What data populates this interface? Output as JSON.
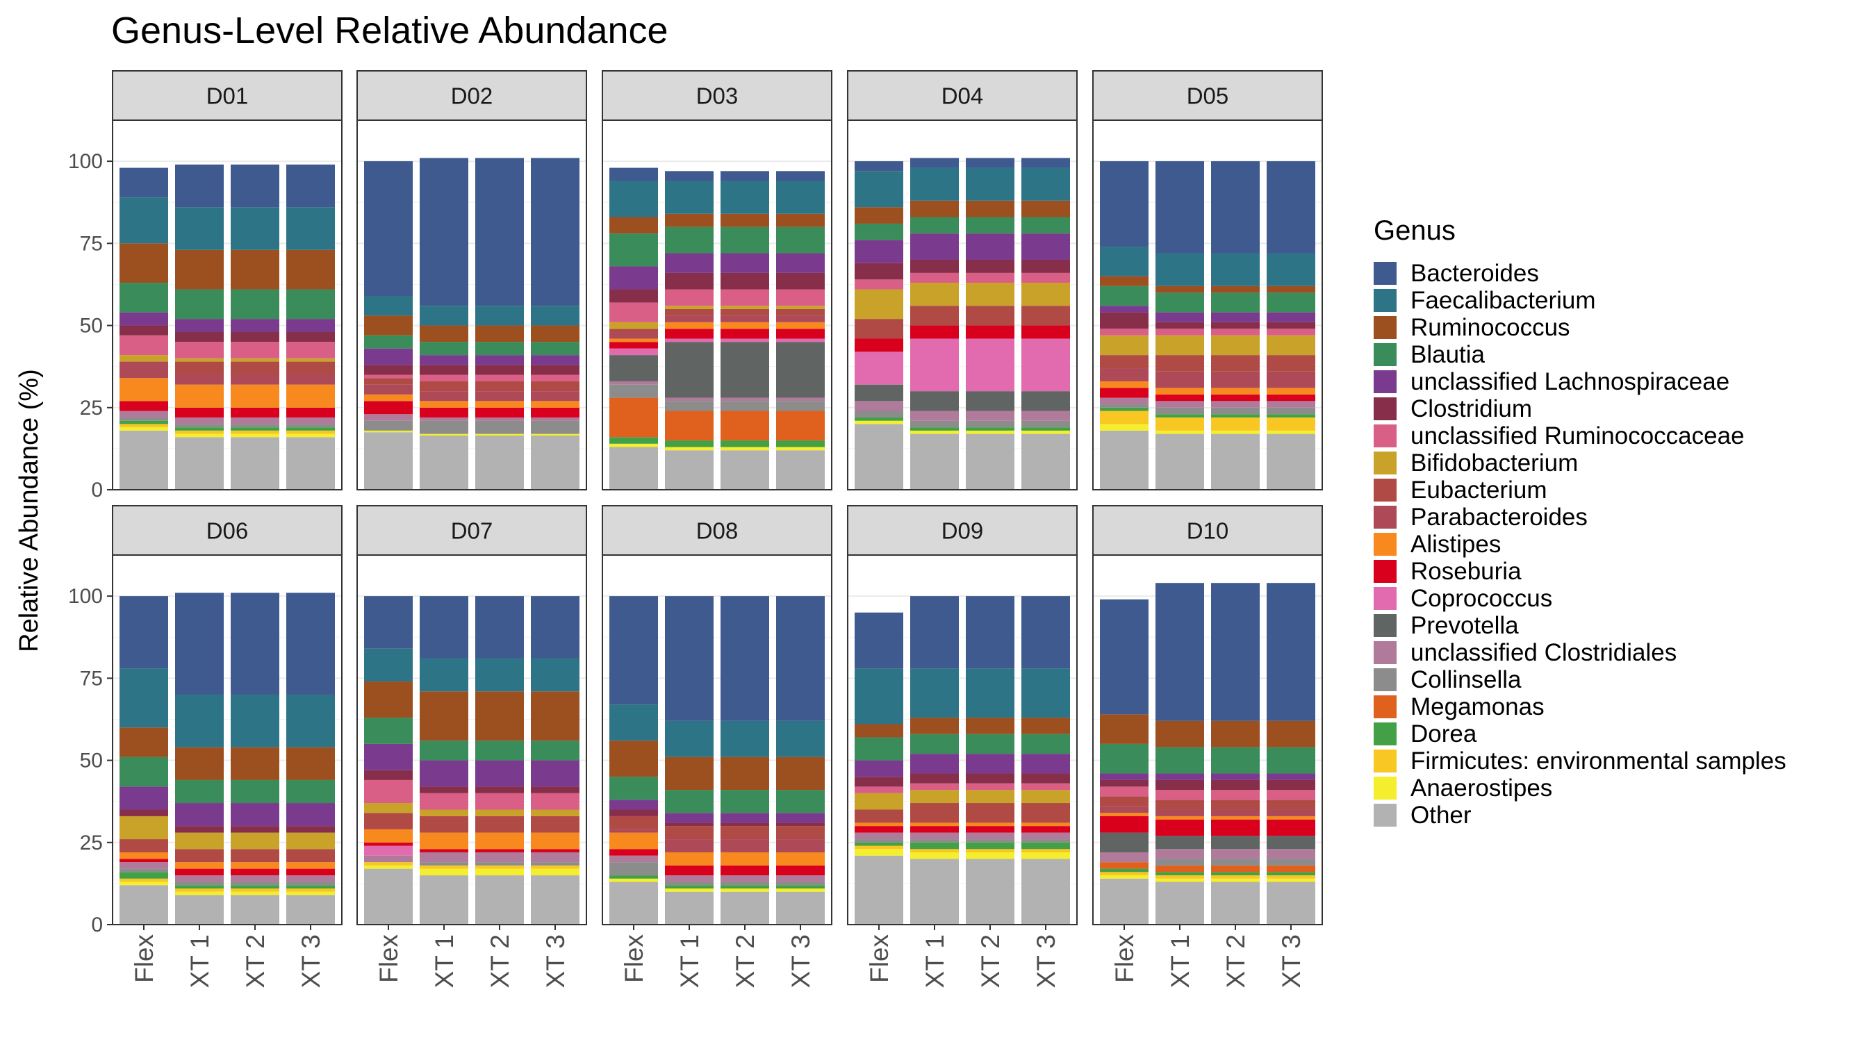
{
  "chart_data": {
    "type": "bar",
    "stacked": true,
    "faceted": true,
    "title": "Genus-Level Relative Abundance",
    "ylabel": "Relative Abundance (%)",
    "xlabel": "",
    "ylim": [
      0,
      100
    ],
    "yticks": [
      0,
      25,
      50,
      75,
      100
    ],
    "categories": [
      "Flex",
      "XT 1",
      "XT 2",
      "XT 3"
    ],
    "legend": {
      "title": "Genus",
      "position": "right"
    },
    "genera": [
      {
        "name": "Bacteroides",
        "color": "#3F5A8F"
      },
      {
        "name": "Faecalibacterium",
        "color": "#2E7487"
      },
      {
        "name": "Ruminococcus",
        "color": "#9C4F1F"
      },
      {
        "name": "Blautia",
        "color": "#3A8C5A"
      },
      {
        "name": "unclassified Lachnospiraceae",
        "color": "#7A3B8F"
      },
      {
        "name": "Clostridium",
        "color": "#872F4A"
      },
      {
        "name": "unclassified Ruminococcaceae",
        "color": "#D95F86"
      },
      {
        "name": "Bifidobacterium",
        "color": "#C9A22A"
      },
      {
        "name": "Eubacterium",
        "color": "#B04A45"
      },
      {
        "name": "Parabacteroides",
        "color": "#AE4A58"
      },
      {
        "name": "Alistipes",
        "color": "#F8891F"
      },
      {
        "name": "Roseburia",
        "color": "#D9001E"
      },
      {
        "name": "Coprococcus",
        "color": "#E16BAE"
      },
      {
        "name": "Prevotella",
        "color": "#606563"
      },
      {
        "name": "unclassified Clostridiales",
        "color": "#B07A9A"
      },
      {
        "name": "Collinsella",
        "color": "#8C8C8C"
      },
      {
        "name": "Megamonas",
        "color": "#E0601E"
      },
      {
        "name": "Dorea",
        "color": "#43A047"
      },
      {
        "name": "Firmicutes: environmental samples",
        "color": "#F8C723"
      },
      {
        "name": "Anaerostipes",
        "color": "#F5EE2C"
      },
      {
        "name": "Other",
        "color": "#B2B2B2"
      }
    ],
    "panels": [
      {
        "name": "D01",
        "bars": [
          [
            9,
            14,
            12,
            9,
            4,
            3,
            6,
            2,
            0,
            5,
            7,
            3,
            0,
            0,
            2,
            1,
            0,
            1,
            1,
            1,
            18
          ],
          [
            13,
            13,
            12,
            9,
            4,
            3,
            5,
            1,
            4,
            3,
            7,
            3,
            0,
            0,
            2,
            1,
            0,
            1,
            1,
            1,
            16
          ],
          [
            13,
            13,
            12,
            9,
            4,
            3,
            5,
            1,
            4,
            3,
            7,
            3,
            0,
            0,
            2,
            1,
            0,
            1,
            1,
            1,
            16
          ],
          [
            13,
            13,
            12,
            9,
            4,
            3,
            5,
            1,
            4,
            3,
            7,
            3,
            0,
            0,
            2,
            1,
            0,
            1,
            1,
            1,
            16
          ]
        ]
      },
      {
        "name": "D02",
        "bars": [
          [
            41,
            6,
            6,
            4,
            5,
            3,
            1,
            0,
            2,
            3,
            2,
            4,
            0,
            0,
            2,
            3,
            0,
            0,
            0,
            0.5,
            17.5
          ],
          [
            45,
            6,
            5,
            4,
            3,
            3,
            2,
            0,
            3,
            3,
            2,
            3,
            0,
            0,
            1,
            4,
            0,
            0,
            0,
            0.5,
            16.5
          ],
          [
            45,
            6,
            5,
            4,
            3,
            3,
            2,
            0,
            3,
            3,
            2,
            3,
            0,
            0,
            1,
            4,
            0,
            0,
            0,
            0.5,
            16.5
          ],
          [
            45,
            6,
            5,
            4,
            3,
            3,
            2,
            0,
            3,
            3,
            2,
            3,
            0,
            0,
            1,
            4,
            0,
            0,
            0,
            0.5,
            16.5
          ]
        ]
      },
      {
        "name": "D03",
        "bars": [
          [
            4,
            11,
            5,
            10,
            7,
            4,
            6,
            2,
            1,
            2,
            1,
            2,
            2,
            8,
            1,
            4,
            12,
            2,
            0,
            1,
            13
          ],
          [
            3,
            10,
            4,
            8,
            6,
            5,
            5,
            1,
            2,
            2,
            2,
            3,
            1,
            17,
            1,
            3,
            9,
            2,
            0,
            1,
            12
          ],
          [
            3,
            10,
            4,
            8,
            6,
            5,
            5,
            1,
            2,
            2,
            2,
            3,
            1,
            17,
            1,
            3,
            9,
            2,
            0,
            1,
            12
          ],
          [
            3,
            10,
            4,
            8,
            6,
            5,
            5,
            1,
            2,
            2,
            2,
            3,
            1,
            17,
            1,
            3,
            9,
            2,
            0,
            1,
            12
          ]
        ]
      },
      {
        "name": "D04",
        "bars": [
          [
            3,
            11,
            5,
            5,
            7,
            5,
            3,
            9,
            6,
            0,
            0,
            4,
            10,
            5,
            3,
            2,
            0,
            1,
            0,
            1,
            20
          ],
          [
            3,
            10,
            5,
            5,
            8,
            4,
            3,
            7,
            6,
            0,
            0,
            4,
            16,
            6,
            3,
            2,
            0,
            1,
            0,
            1,
            17
          ],
          [
            3,
            10,
            5,
            5,
            8,
            4,
            3,
            7,
            6,
            0,
            0,
            4,
            16,
            6,
            3,
            2,
            0,
            1,
            0,
            1,
            17
          ],
          [
            3,
            10,
            5,
            5,
            8,
            4,
            3,
            7,
            6,
            0,
            0,
            4,
            16,
            6,
            3,
            2,
            0,
            1,
            0,
            1,
            17
          ]
        ]
      },
      {
        "name": "D05",
        "bars": [
          [
            26,
            9,
            3,
            6,
            2,
            5,
            2,
            6,
            4,
            4,
            2,
            3,
            0,
            0,
            2,
            1,
            0,
            1,
            4,
            2,
            18
          ],
          [
            28,
            10,
            2,
            6,
            3,
            2,
            2,
            6,
            5,
            5,
            2,
            2,
            0,
            0,
            2,
            2,
            0,
            1,
            4,
            1,
            17
          ],
          [
            28,
            10,
            2,
            6,
            3,
            2,
            2,
            6,
            5,
            5,
            2,
            2,
            0,
            0,
            2,
            2,
            0,
            1,
            4,
            1,
            17
          ],
          [
            28,
            10,
            2,
            6,
            3,
            2,
            2,
            6,
            5,
            5,
            2,
            2,
            0,
            0,
            2,
            2,
            0,
            1,
            4,
            1,
            17
          ]
        ]
      },
      {
        "name": "D06",
        "bars": [
          [
            22,
            18,
            9,
            9,
            7,
            2,
            0,
            7,
            4,
            0,
            2,
            1,
            0,
            0,
            2,
            1,
            0,
            2,
            1,
            1,
            12
          ],
          [
            31,
            16,
            10,
            7,
            7,
            2,
            0,
            5,
            4,
            0,
            2,
            2,
            0,
            0,
            2,
            1,
            0,
            1,
            1,
            1,
            9
          ],
          [
            31,
            16,
            10,
            7,
            7,
            2,
            0,
            5,
            4,
            0,
            2,
            2,
            0,
            0,
            2,
            1,
            0,
            1,
            1,
            1,
            9
          ],
          [
            31,
            16,
            10,
            7,
            7,
            2,
            0,
            5,
            4,
            0,
            2,
            2,
            0,
            0,
            2,
            1,
            0,
            1,
            1,
            1,
            9
          ]
        ]
      },
      {
        "name": "D07",
        "bars": [
          [
            16,
            10,
            11,
            8,
            8,
            3,
            7,
            3,
            5,
            0,
            4,
            1,
            3,
            0,
            2,
            0,
            0,
            0,
            1,
            1,
            17
          ],
          [
            19,
            10,
            15,
            6,
            8,
            2,
            5,
            2,
            5,
            0,
            5,
            1,
            0,
            0,
            3,
            1,
            0,
            0,
            1,
            2,
            15
          ],
          [
            19,
            10,
            15,
            6,
            8,
            2,
            5,
            2,
            5,
            0,
            5,
            1,
            0,
            0,
            3,
            1,
            0,
            0,
            1,
            2,
            15
          ],
          [
            19,
            10,
            15,
            6,
            8,
            2,
            5,
            2,
            5,
            0,
            5,
            1,
            0,
            0,
            3,
            1,
            0,
            0,
            1,
            2,
            15
          ]
        ]
      },
      {
        "name": "D08",
        "bars": [
          [
            33,
            11,
            11,
            7,
            3,
            2,
            0,
            0,
            4,
            1,
            5,
            2,
            0,
            0,
            2,
            4,
            0,
            1,
            0,
            1,
            13
          ],
          [
            38,
            11,
            10,
            7,
            3,
            1,
            0,
            0,
            4,
            4,
            4,
            3,
            0,
            0,
            2,
            1,
            0,
            1,
            0,
            1,
            10
          ],
          [
            38,
            11,
            10,
            7,
            3,
            1,
            0,
            0,
            4,
            4,
            4,
            3,
            0,
            0,
            2,
            1,
            0,
            1,
            0,
            1,
            10
          ],
          [
            38,
            11,
            10,
            7,
            3,
            1,
            0,
            0,
            4,
            4,
            4,
            3,
            0,
            0,
            2,
            1,
            0,
            1,
            0,
            1,
            10
          ]
        ]
      },
      {
        "name": "D09",
        "bars": [
          [
            17,
            17,
            4,
            7,
            5,
            3,
            2,
            5,
            4,
            0,
            1,
            2,
            0,
            0,
            2,
            1,
            0,
            1,
            1,
            2,
            21
          ],
          [
            22,
            15,
            5,
            6,
            6,
            3,
            2,
            4,
            6,
            0,
            1,
            2,
            0,
            0,
            2,
            1,
            0,
            2,
            1,
            2,
            20
          ],
          [
            22,
            15,
            5,
            6,
            6,
            3,
            2,
            4,
            6,
            0,
            1,
            2,
            0,
            0,
            2,
            1,
            0,
            2,
            1,
            2,
            20
          ],
          [
            22,
            15,
            5,
            6,
            6,
            3,
            2,
            4,
            6,
            0,
            1,
            2,
            0,
            0,
            2,
            1,
            0,
            2,
            1,
            2,
            20
          ]
        ]
      },
      {
        "name": "D10",
        "bars": [
          [
            35,
            0,
            9,
            9,
            2,
            2,
            3,
            0,
            3,
            2,
            1,
            5,
            0,
            6,
            3,
            0,
            2,
            1,
            1,
            1,
            14
          ],
          [
            42,
            0,
            8,
            8,
            2,
            3,
            3,
            0,
            3,
            2,
            1,
            5,
            0,
            4,
            3,
            2,
            2,
            1,
            1,
            1,
            13
          ],
          [
            42,
            0,
            8,
            8,
            2,
            3,
            3,
            0,
            3,
            2,
            1,
            5,
            0,
            4,
            3,
            2,
            2,
            1,
            1,
            1,
            13
          ],
          [
            42,
            0,
            8,
            8,
            2,
            3,
            3,
            0,
            3,
            2,
            1,
            5,
            0,
            4,
            3,
            2,
            2,
            1,
            1,
            1,
            13
          ]
        ]
      }
    ]
  }
}
